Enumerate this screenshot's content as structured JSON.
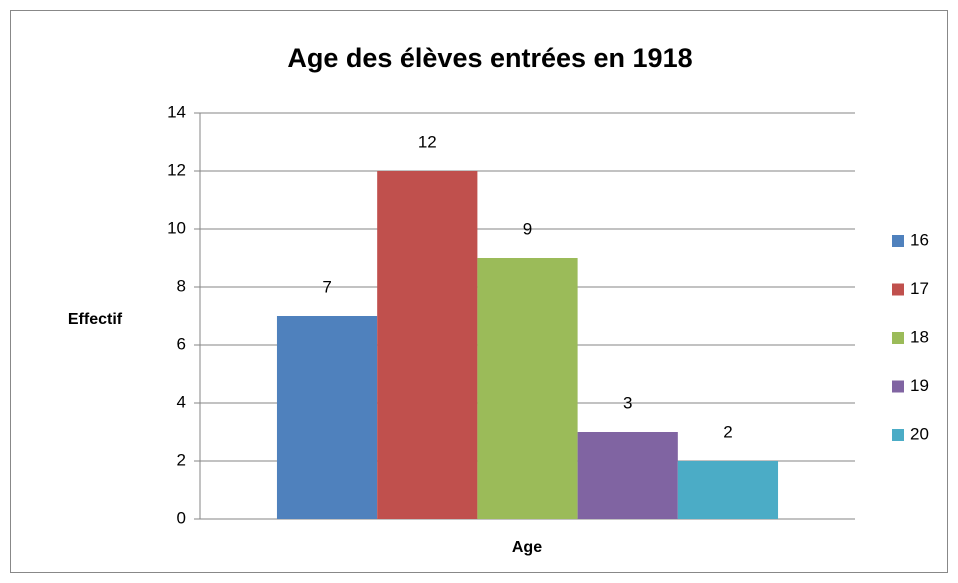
{
  "chart_data": {
    "type": "bar",
    "title": "Age des élèves entrées en 1918",
    "x_label": "Age",
    "y_label": "Effectif",
    "categories": [
      null
    ],
    "series": [
      {
        "name": "16",
        "color": "#4f81bd",
        "values": [
          7
        ]
      },
      {
        "name": "17",
        "color": "#c0504d",
        "values": [
          12
        ]
      },
      {
        "name": "18",
        "color": "#9bbb59",
        "values": [
          9
        ]
      },
      {
        "name": "19",
        "color": "#8064a2",
        "values": [
          3
        ]
      },
      {
        "name": "20",
        "color": "#4bacc6",
        "values": [
          2
        ]
      }
    ],
    "ylim": [
      0,
      14
    ],
    "yticks": [
      0,
      2,
      4,
      6,
      8,
      10,
      12,
      14
    ],
    "grid": true,
    "legend": "right",
    "data_labels": true
  }
}
